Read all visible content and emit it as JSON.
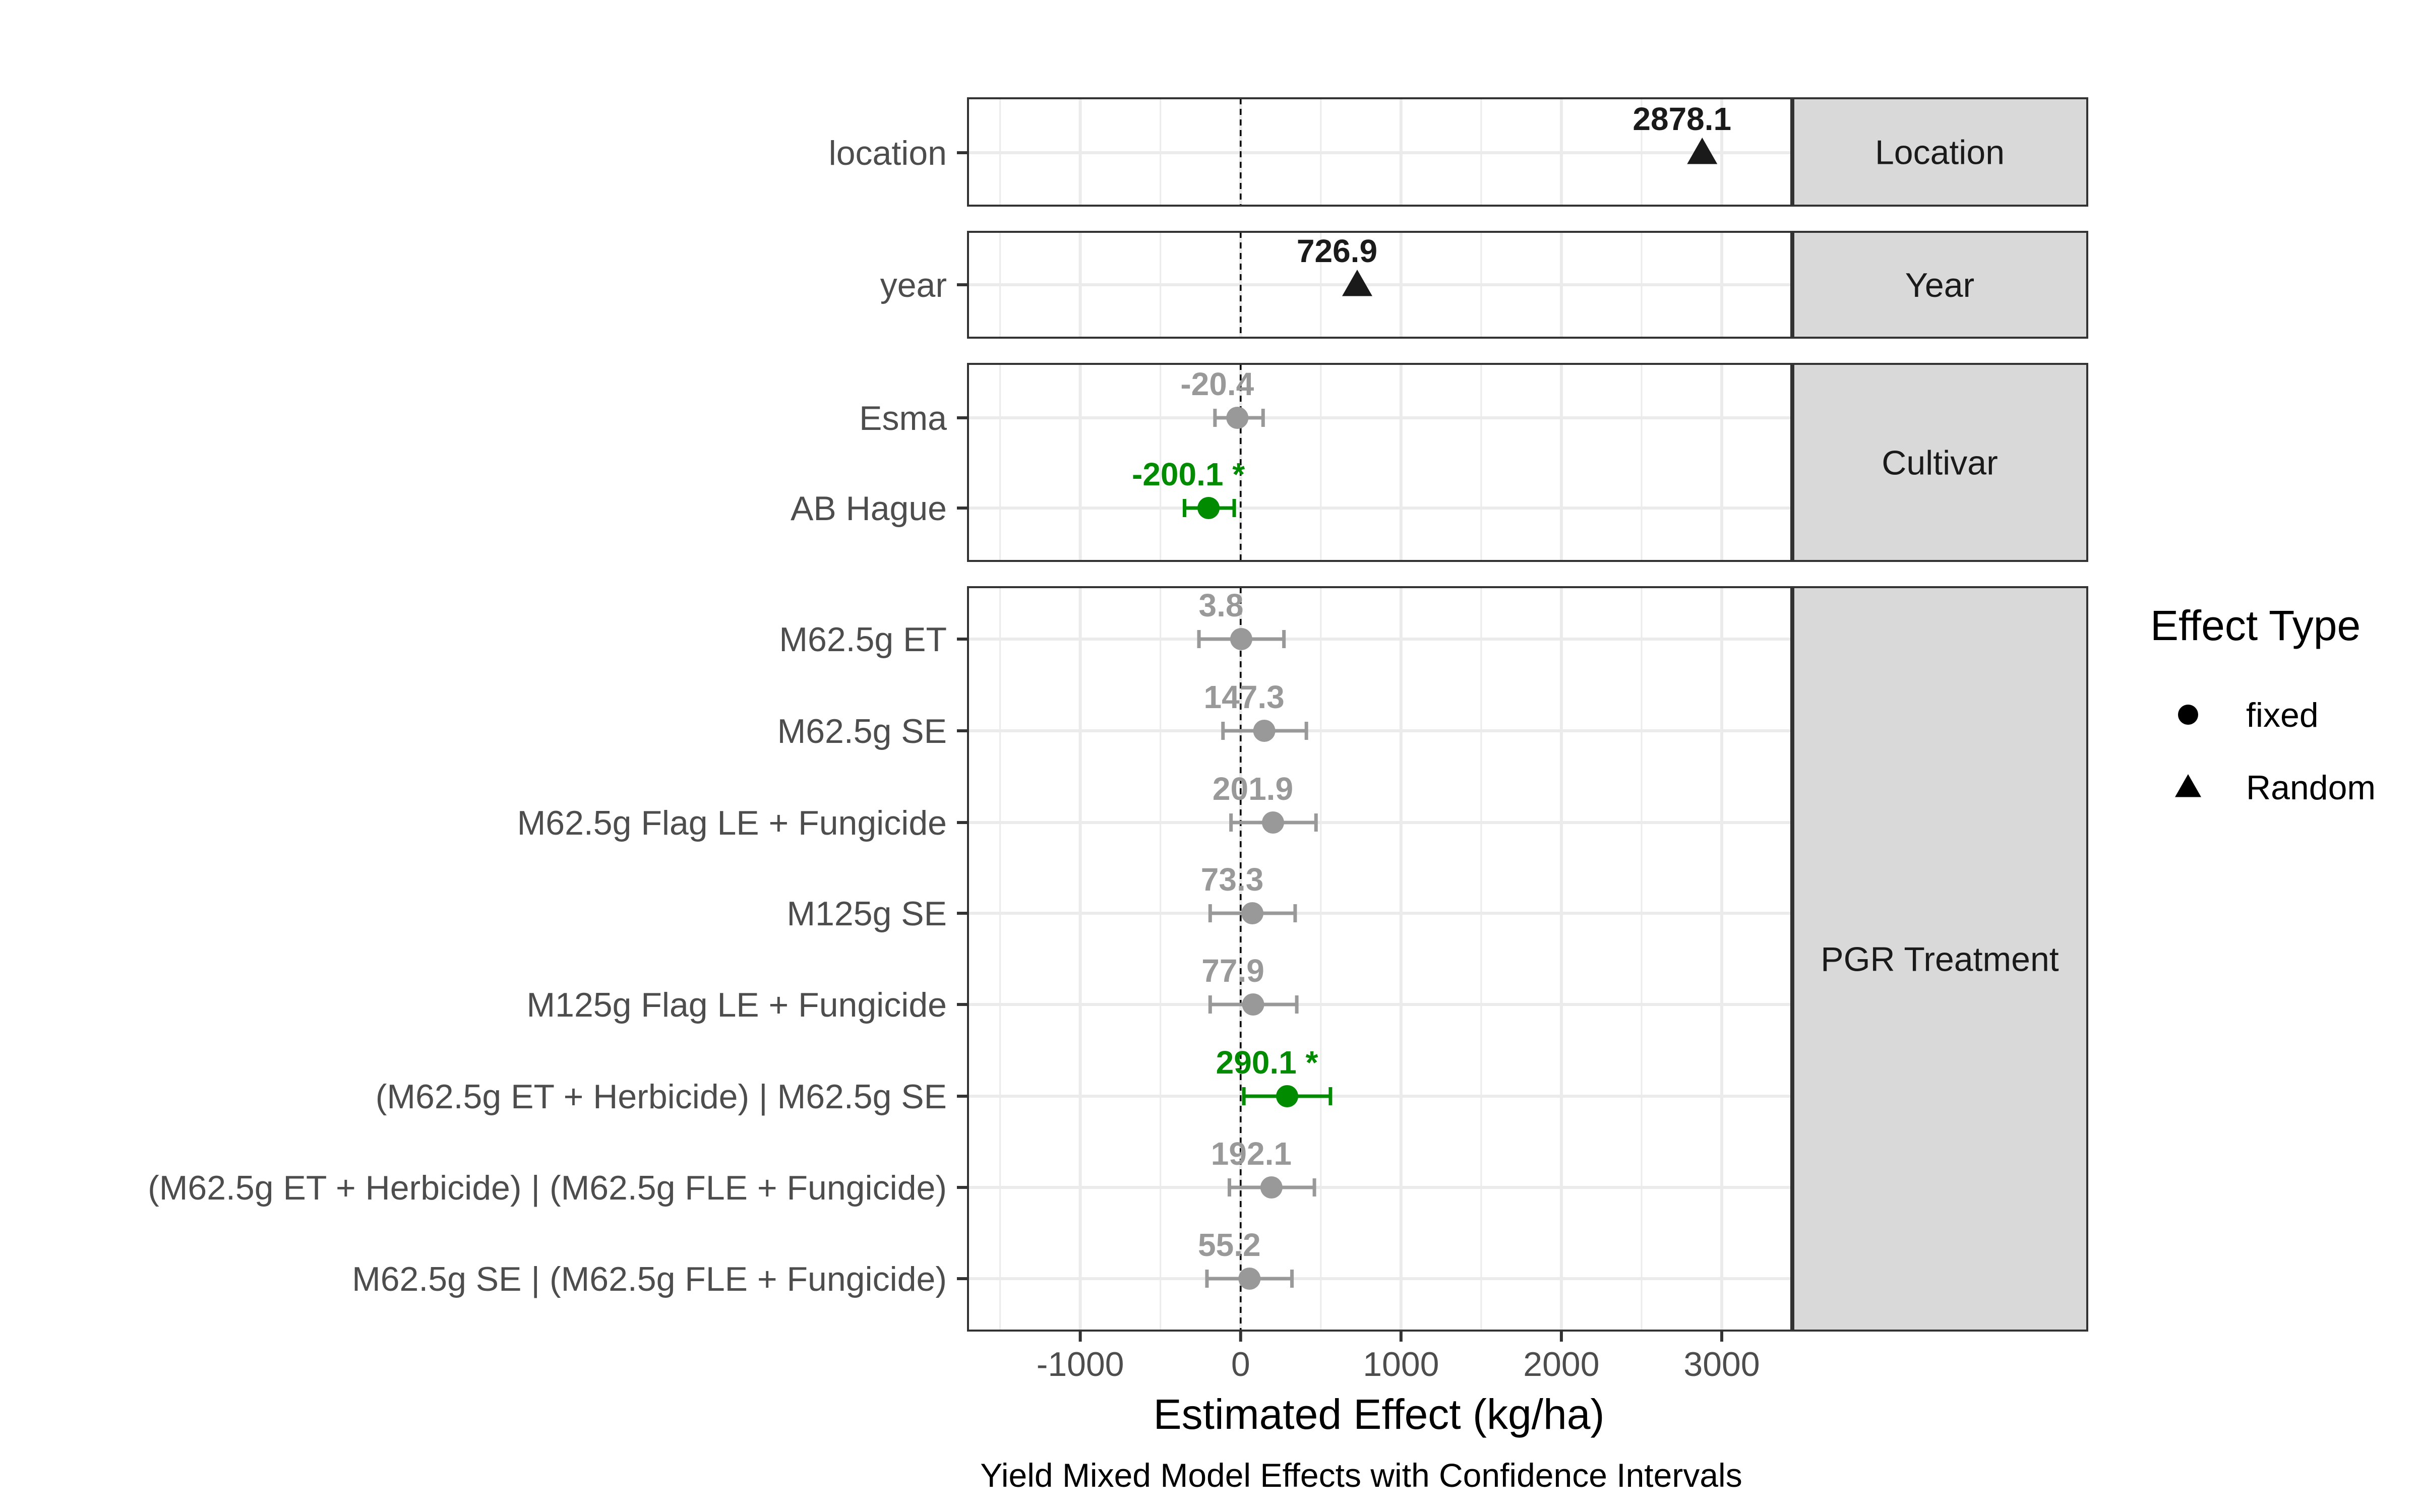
{
  "chart_data": {
    "type": "forest-plot",
    "caption": "Yield Mixed Model Effects with Confidence Intervals",
    "xlabel": "Estimated Effect (kg/ha)",
    "xlim": [
      -1700,
      3440
    ],
    "xticks": [
      -1000,
      0,
      1000,
      2000,
      3000
    ],
    "xtick_labels": [
      "-1000",
      "0",
      "1000",
      "2000",
      "3000"
    ],
    "reference_line": 0,
    "grid": true,
    "legend": {
      "title": "Effect Type",
      "placement": "right",
      "entries": [
        {
          "label": "fixed",
          "shape": "circle"
        },
        {
          "label": "Random",
          "shape": "triangle"
        }
      ]
    },
    "colors": {
      "significant": "#008B00",
      "not_significant": "#999999",
      "random": "#1a1a1a",
      "strip": "#d9d9d9",
      "grid": "#ebebeb"
    },
    "panels": [
      {
        "strip": "Location",
        "rows": [
          {
            "term": "location",
            "estimate": 2878.1,
            "label": "2878.1",
            "type": "Random",
            "ci": null,
            "status": "random"
          }
        ]
      },
      {
        "strip": "Year",
        "rows": [
          {
            "term": "year",
            "estimate": 726.9,
            "label": "726.9",
            "type": "Random",
            "ci": null,
            "status": "random"
          }
        ]
      },
      {
        "strip": "Cultivar",
        "rows": [
          {
            "term": "Esma",
            "estimate": -20.4,
            "label": "-20.4",
            "type": "fixed",
            "ci": [
              -160,
              140
            ],
            "status": "not_significant"
          },
          {
            "term": "AB Hague",
            "estimate": -200.1,
            "label": "-200.1 *",
            "type": "fixed",
            "ci": [
              -350,
              -40
            ],
            "status": "significant"
          }
        ]
      },
      {
        "strip": "PGR Treatment",
        "rows": [
          {
            "term": "M62.5g ET",
            "estimate": 3.8,
            "label": "3.8",
            "type": "fixed",
            "ci": [
              -260,
              270
            ],
            "status": "not_significant"
          },
          {
            "term": "M62.5g SE",
            "estimate": 147.3,
            "label": "147.3",
            "type": "fixed",
            "ci": [
              -110,
              410
            ],
            "status": "not_significant"
          },
          {
            "term": "M62.5g Flag LE + Fungicide",
            "estimate": 201.9,
            "label": "201.9",
            "type": "fixed",
            "ci": [
              -60,
              470
            ],
            "status": "not_significant"
          },
          {
            "term": "M125g SE",
            "estimate": 73.3,
            "label": "73.3",
            "type": "fixed",
            "ci": [
              -190,
              340
            ],
            "status": "not_significant"
          },
          {
            "term": "M125g Flag LE + Fungicide",
            "estimate": 77.9,
            "label": "77.9",
            "type": "fixed",
            "ci": [
              -190,
              350
            ],
            "status": "not_significant"
          },
          {
            "term": "(M62.5g ET + Herbicide) | M62.5g SE",
            "estimate": 290.1,
            "label": "290.1 *",
            "type": "fixed",
            "ci": [
              20,
              560
            ],
            "status": "significant"
          },
          {
            "term": "(M62.5g ET + Herbicide) | (M62.5g FLE + Fungicide)",
            "estimate": 192.1,
            "label": "192.1",
            "type": "fixed",
            "ci": [
              -70,
              460
            ],
            "status": "not_significant"
          },
          {
            "term": "M62.5g SE | (M62.5g FLE + Fungicide)",
            "estimate": 55.2,
            "label": "55.2",
            "type": "fixed",
            "ci": [
              -210,
              320
            ],
            "status": "not_significant"
          }
        ]
      }
    ]
  }
}
